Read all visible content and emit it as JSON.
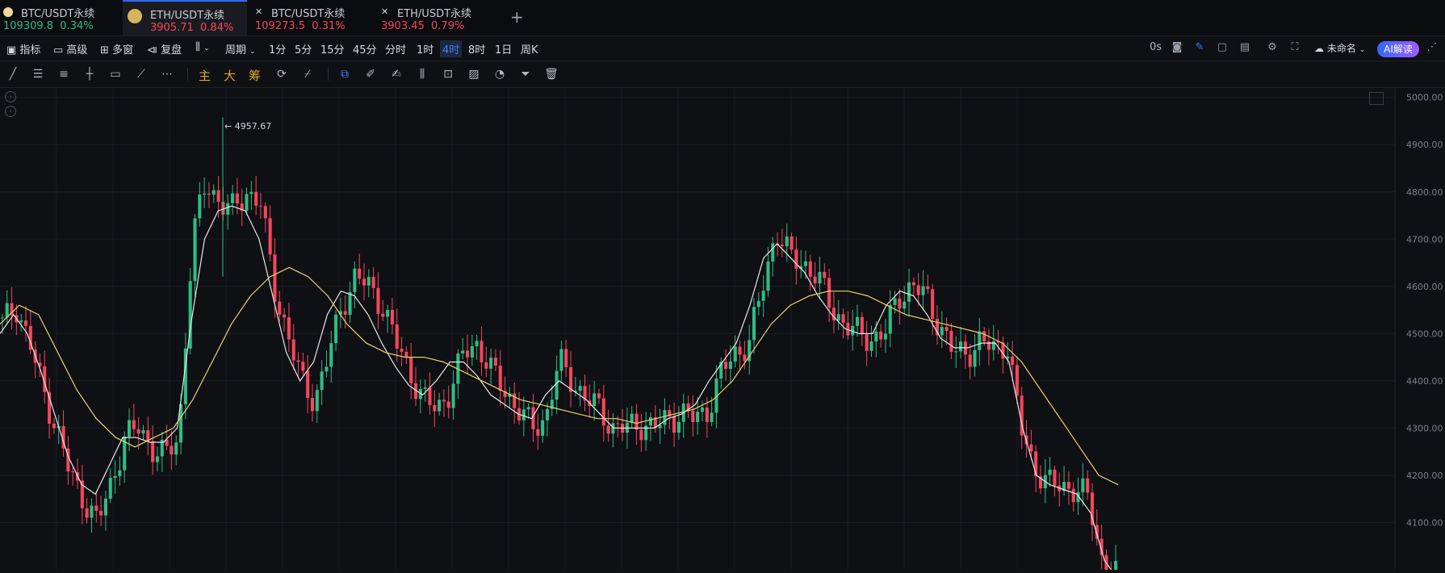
{
  "tabs": [
    {
      "name": "BTC/USDT永续",
      "price": "109309.8",
      "change": "0.34%",
      "trend": "up",
      "icon": "btc-dot-icon"
    },
    {
      "name": "ETH/USDT永续",
      "price": "3905.71",
      "change": "0.84%",
      "trend": "down",
      "icon": "eth-logo-icon",
      "active": true
    },
    {
      "name": "BTC/USDT永续",
      "price": "109273.5",
      "change": "0.31%",
      "trend": "down",
      "icon": "close-icon"
    },
    {
      "name": "ETH/USDT永续",
      "price": "3903.45",
      "change": "0.79%",
      "trend": "down",
      "icon": "close-icon"
    }
  ],
  "add_tab": "+",
  "toolbar": {
    "indicators": "指标",
    "advanced": "高级",
    "multi_window": "多窗",
    "replay": "复盘",
    "period": "周期",
    "intervals": [
      "1分",
      "5分",
      "15分",
      "45分",
      "分时",
      "1时",
      "4时",
      "8时",
      "1日",
      "周K"
    ],
    "active_interval": "4时",
    "countdown": "0s",
    "layout_name": "未命名",
    "ai_label": "AI解读"
  },
  "drawbar": {
    "labels": [
      "主",
      "大",
      "筹"
    ]
  },
  "colors": {
    "up": "#2ebd85",
    "down": "#f6465d",
    "accent": "#2b6bff",
    "ma_fast": "#e6e6e6",
    "ma_slow": "#e8d36a"
  },
  "chart_data": {
    "type": "candlestick",
    "symbol": "ETH/USDT永续",
    "interval": "4时",
    "y_ticks": [
      "5000.00",
      "4900.00",
      "4800.00",
      "4700.00",
      "4600.00",
      "4500.00",
      "4400.00",
      "4300.00",
      "4200.00",
      "4100.00"
    ],
    "ylim": [
      4000,
      5020
    ],
    "peak_label": "4957.67",
    "peak_value": 4957.67,
    "close_trend": [
      4520,
      4560,
      4480,
      4380,
      4300,
      4200,
      4150,
      4100,
      4180,
      4280,
      4300,
      4260,
      4240,
      4280,
      4700,
      4820,
      4780,
      4760,
      4800,
      4780,
      4600,
      4500,
      4400,
      4360,
      4450,
      4560,
      4620,
      4600,
      4560,
      4480,
      4420,
      4360,
      4340,
      4380,
      4460,
      4480,
      4420,
      4380,
      4340,
      4300,
      4320,
      4440,
      4400,
      4360,
      4340,
      4300,
      4300,
      4310,
      4300,
      4320,
      4330,
      4320,
      4340,
      4420,
      4460,
      4480,
      4600,
      4720,
      4660,
      4650,
      4620,
      4560,
      4520,
      4500,
      4490,
      4500,
      4580,
      4600,
      4580,
      4520,
      4460,
      4460,
      4480,
      4470,
      4480,
      4300,
      4220,
      4180,
      4180,
      4170,
      4150,
      4020,
      3990
    ],
    "ma_fast": [
      4500,
      4540,
      4500,
      4420,
      4330,
      4240,
      4180,
      4160,
      4220,
      4280,
      4280,
      4270,
      4270,
      4300,
      4520,
      4700,
      4760,
      4770,
      4760,
      4700,
      4580,
      4460,
      4400,
      4440,
      4540,
      4590,
      4580,
      4540,
      4480,
      4430,
      4390,
      4370,
      4400,
      4440,
      4440,
      4410,
      4370,
      4350,
      4330,
      4320,
      4370,
      4400,
      4380,
      4360,
      4330,
      4300,
      4300,
      4300,
      4300,
      4320,
      4330,
      4350,
      4400,
      4440,
      4480,
      4560,
      4660,
      4690,
      4660,
      4630,
      4580,
      4540,
      4510,
      4500,
      4500,
      4560,
      4590,
      4580,
      4540,
      4490,
      4470,
      4470,
      4480,
      4480,
      4440,
      4300,
      4200,
      4180,
      4170,
      4160,
      4120,
      4020,
      3980
    ],
    "ma_slow": [
      4520,
      4560,
      4540,
      4460,
      4380,
      4320,
      4280,
      4260,
      4280,
      4300,
      4360,
      4440,
      4520,
      4580,
      4620,
      4640,
      4620,
      4580,
      4520,
      4480,
      4460,
      4450,
      4450,
      4440,
      4420,
      4400,
      4380,
      4360,
      4350,
      4340,
      4330,
      4320,
      4320,
      4310,
      4320,
      4330,
      4340,
      4360,
      4400,
      4460,
      4520,
      4560,
      4580,
      4590,
      4590,
      4580,
      4560,
      4540,
      4530,
      4520,
      4510,
      4500,
      4480,
      4440,
      4380,
      4320,
      4260,
      4200,
      4180
    ]
  }
}
